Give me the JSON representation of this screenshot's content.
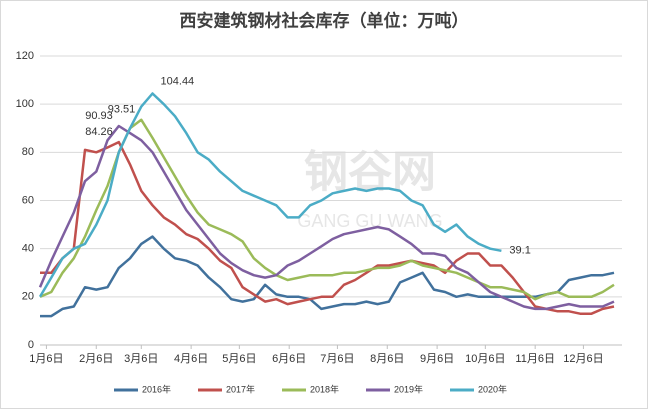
{
  "chart_data": {
    "type": "line",
    "title": "西安建筑钢材社会库存（单位：万吨）",
    "watermark": [
      "钢谷网",
      "GANG GU WANG"
    ],
    "x": [
      2,
      9,
      16,
      23,
      30,
      37,
      44,
      51,
      58,
      65,
      72,
      79,
      86,
      93,
      100,
      107,
      114,
      121,
      128,
      135,
      142,
      149,
      156,
      163,
      170,
      177,
      184,
      191,
      198,
      205,
      212,
      219,
      226,
      233,
      240,
      247,
      254,
      261,
      268,
      275,
      282,
      289,
      296,
      303,
      310,
      317,
      324,
      331,
      338,
      345,
      352,
      359
    ],
    "xlim": [
      2,
      364
    ],
    "xticks": [
      {
        "value": 6,
        "label": "1月6日"
      },
      {
        "value": 37,
        "label": "2月6日"
      },
      {
        "value": 65,
        "label": "3月6日"
      },
      {
        "value": 96,
        "label": "4月6日"
      },
      {
        "value": 126,
        "label": "5月6日"
      },
      {
        "value": 157,
        "label": "6月6日"
      },
      {
        "value": 187,
        "label": "7月6日"
      },
      {
        "value": 218,
        "label": "8月6日"
      },
      {
        "value": 249,
        "label": "9月6日"
      },
      {
        "value": 279,
        "label": "10月6日"
      },
      {
        "value": 310,
        "label": "11月6日"
      },
      {
        "value": 340,
        "label": "12月6日"
      }
    ],
    "ylim": [
      0,
      120
    ],
    "yticks": [
      0,
      20,
      40,
      60,
      80,
      100,
      120
    ],
    "grid": true,
    "series": [
      {
        "name": "2016年",
        "color": "#41719c",
        "values": [
          12,
          12,
          15,
          16,
          24,
          23,
          24,
          32,
          36,
          42,
          45,
          40,
          36,
          35,
          33,
          28,
          24,
          19,
          18,
          19,
          25,
          21,
          20,
          20,
          19,
          15,
          16,
          17,
          17,
          18,
          17,
          18,
          26,
          28,
          30,
          23,
          22,
          20,
          21,
          20,
          20,
          20,
          20,
          20,
          20,
          21,
          22,
          27,
          28,
          29,
          29,
          30
        ]
      },
      {
        "name": "2017年",
        "color": "#c0504d",
        "values": [
          30,
          30,
          36,
          40,
          81,
          80,
          82,
          84.26,
          75,
          64,
          58,
          53,
          50,
          46,
          44,
          40,
          35,
          32,
          24,
          21,
          18,
          19,
          17,
          18,
          19,
          20,
          20,
          25,
          27,
          30,
          33,
          33,
          34,
          35,
          34,
          33,
          30,
          35,
          38,
          38,
          33,
          33,
          28,
          22,
          16,
          15,
          14,
          14,
          13,
          13,
          15,
          16
        ]
      },
      {
        "name": "2018年",
        "color": "#9bbb59",
        "values": [
          20,
          22,
          30,
          36,
          45,
          56,
          66,
          80,
          90,
          93.51,
          86,
          78,
          70,
          62,
          55,
          50,
          48,
          46,
          43,
          36,
          32,
          29,
          27,
          28,
          29,
          29,
          29,
          30,
          30,
          31,
          32,
          32,
          33,
          35,
          33,
          32,
          31,
          30,
          28,
          26,
          24,
          24,
          23,
          22,
          19,
          21,
          22,
          20,
          20,
          20,
          22,
          25
        ]
      },
      {
        "name": "2019年",
        "color": "#7e5fa0",
        "values": [
          24,
          35,
          45,
          55,
          68,
          72,
          85,
          90.93,
          88,
          85,
          80,
          72,
          64,
          56,
          50,
          44,
          38,
          34,
          31,
          29,
          28,
          29,
          33,
          35,
          38,
          41,
          44,
          46,
          47,
          48,
          49,
          48,
          45,
          42,
          38,
          38,
          37,
          32,
          30,
          26,
          22,
          20,
          18,
          16,
          15,
          15,
          16,
          17,
          16,
          16,
          16,
          18
        ]
      },
      {
        "name": "2020年",
        "color": "#4bacc6",
        "values": [
          20,
          28,
          36,
          40,
          42,
          50,
          60,
          80,
          90,
          99,
          104.44,
          100,
          95,
          88,
          80,
          77,
          72,
          68,
          64,
          62,
          60,
          58,
          53,
          53,
          58,
          60,
          63,
          64,
          65,
          64,
          65,
          65,
          64,
          60,
          58,
          50,
          47,
          50,
          45,
          42,
          40,
          39.1,
          null,
          null,
          null,
          null,
          null,
          null,
          null,
          null,
          null,
          null
        ]
      }
    ],
    "labeled_points": [
      [
        1,
        7
      ],
      [
        2,
        9
      ],
      [
        3,
        7
      ],
      [
        4,
        10
      ],
      [
        4,
        41
      ]
    ]
  }
}
